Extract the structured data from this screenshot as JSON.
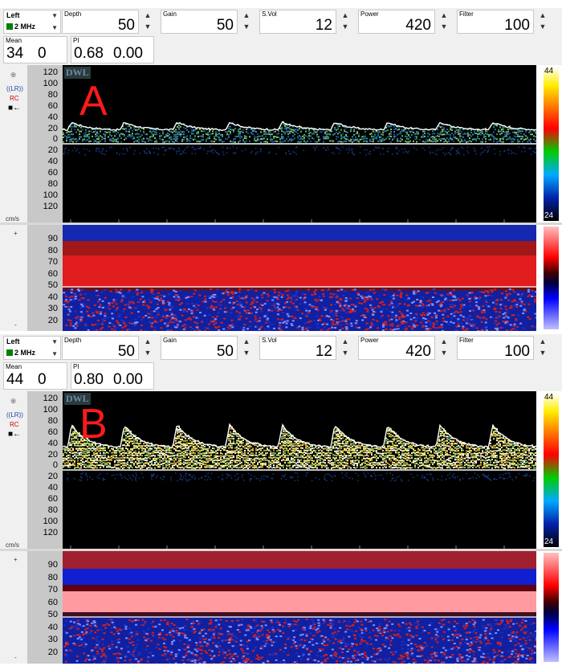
{
  "panels": [
    {
      "letter": "A",
      "probe": {
        "side": "Left",
        "frequency": "2 MHz"
      },
      "controls": [
        {
          "label": "Depth",
          "value": "50"
        },
        {
          "label": "Gain",
          "value": "50"
        },
        {
          "label": "S.Vol",
          "value": "12"
        },
        {
          "label": "Power",
          "value": "420"
        },
        {
          "label": "Filter",
          "value": "100"
        }
      ],
      "mean": {
        "label": "Mean",
        "value1": "34",
        "value2": "0"
      },
      "pi": {
        "label": "PI",
        "value1": "0.68",
        "value2": "0.00"
      },
      "logo": "DWL",
      "velocity_ticks": [
        "120",
        "100",
        "80",
        "60",
        "40",
        "20",
        "0",
        "20",
        "40",
        "60",
        "80",
        "100",
        "120"
      ],
      "unit": "cm/s",
      "colorbar_top": "44",
      "colorbar_bottom": "24",
      "side_labels": {
        "icon": "probe-icon",
        "lr": "((LR))",
        "rc": "RC",
        "arrow": "■←"
      },
      "mmode_ticks": [
        "90",
        "80",
        "70",
        "60",
        "50",
        "40",
        "30",
        "20"
      ],
      "mmode_plus": "+",
      "mmode_minus": "-"
    },
    {
      "letter": "B",
      "probe": {
        "side": "Left",
        "frequency": "2 MHz"
      },
      "controls": [
        {
          "label": "Depth",
          "value": "50"
        },
        {
          "label": "Gain",
          "value": "50"
        },
        {
          "label": "S.Vol",
          "value": "12"
        },
        {
          "label": "Power",
          "value": "420"
        },
        {
          "label": "Filter",
          "value": "100"
        }
      ],
      "mean": {
        "label": "Mean",
        "value1": "44",
        "value2": "0"
      },
      "pi": {
        "label": "PI",
        "value1": "0.80",
        "value2": "0.00"
      },
      "logo": "DWL",
      "velocity_ticks": [
        "120",
        "100",
        "80",
        "60",
        "40",
        "20",
        "0",
        "20",
        "40",
        "60",
        "80",
        "100",
        "120"
      ],
      "unit": "cm/s",
      "colorbar_top": "44",
      "colorbar_bottom": "24",
      "side_labels": {
        "icon": "probe-icon",
        "lr": "((LR))",
        "rc": "RC",
        "arrow": "■←"
      },
      "mmode_ticks": [
        "90",
        "80",
        "70",
        "60",
        "50",
        "40",
        "30",
        "20"
      ],
      "mmode_plus": "+",
      "mmode_minus": "-"
    }
  ],
  "colors": {
    "letter": "#ff1a1a",
    "envelope": "#ffffff",
    "freq_swatch": "#008000",
    "background": "#f0f0f0"
  }
}
